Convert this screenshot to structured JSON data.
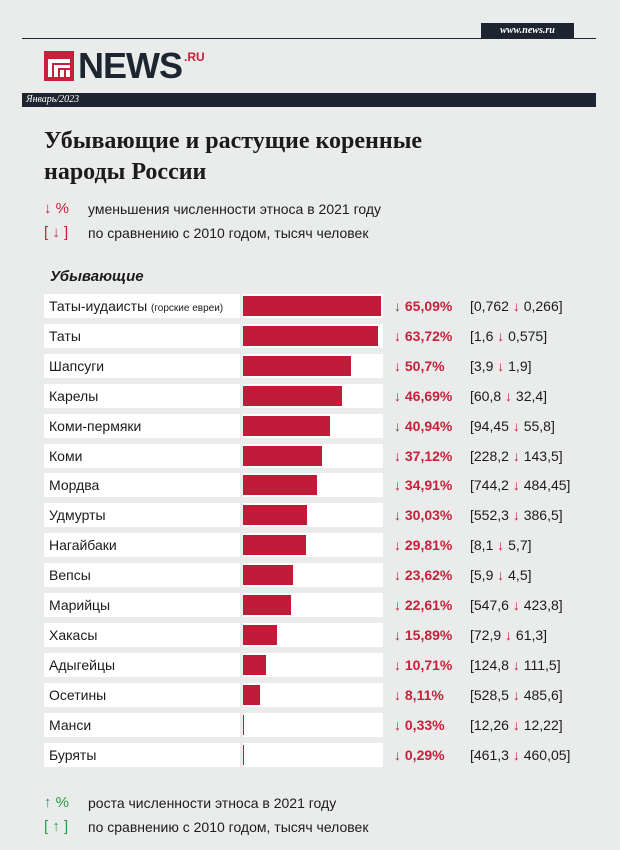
{
  "header": {
    "site_tag": "www.news.ru",
    "logo_word": "NEWS",
    "logo_suffix": ".RU",
    "date": "Январь/2023"
  },
  "title_line1": "Убывающие и растущие коренные",
  "title_line2": "народы России",
  "legend_decline": {
    "pct_symbol": "↓ %",
    "pct_text": "уменьшения численности этноса в 2021 году",
    "bracket_symbol": "[ ↓ ]",
    "bracket_text": "по сравнению с 2010 годом, тысяч человек"
  },
  "legend_growth": {
    "pct_symbol": "↑ %",
    "pct_text": "роста численности этноса в 2021 году",
    "bracket_symbol": "[ ↑ ]",
    "bracket_text": "по сравнению с 2010 годом, тысяч человек"
  },
  "section_title": "Убывающие",
  "colors": {
    "accent": "#c7203b",
    "bar": "#c01c3a",
    "growth": "#2f9a48",
    "dark": "#1d2530"
  },
  "chart_data": {
    "type": "bar",
    "orientation": "horizontal",
    "title": "Убывающие",
    "unit": "%",
    "xlim": [
      0,
      65.09
    ],
    "categories": [
      "Таты-иудаисты",
      "Таты",
      "Шапсуги",
      "Карелы",
      "Коми-пермяки",
      "Коми",
      "Мордва",
      "Удмурты",
      "Нагайбаки",
      "Вепсы",
      "Марийцы",
      "Хакасы",
      "Адыгейцы",
      "Осетины",
      "Манси",
      "Буряты"
    ],
    "rows": [
      {
        "name": "Таты-иудаисты",
        "note": "(горские евреи)",
        "value": 65.09,
        "pct_label": "↓ 65,09%",
        "from": "0,762",
        "to": "0,266"
      },
      {
        "name": "Таты",
        "note": "",
        "value": 63.72,
        "pct_label": "↓ 63,72%",
        "from": "1,6",
        "to": "0,575"
      },
      {
        "name": "Шапсуги",
        "note": "",
        "value": 50.7,
        "pct_label": "↓ 50,7%",
        "from": "3,9",
        "to": "1,9"
      },
      {
        "name": "Карелы",
        "note": "",
        "value": 46.69,
        "pct_label": "↓ 46,69%",
        "from": "60,8",
        "to": "32,4"
      },
      {
        "name": "Коми-пермяки",
        "note": "",
        "value": 40.94,
        "pct_label": "↓ 40,94%",
        "from": "94,45",
        "to": "55,8"
      },
      {
        "name": "Коми",
        "note": "",
        "value": 37.12,
        "pct_label": "↓ 37,12%",
        "from": "228,2",
        "to": "143,5"
      },
      {
        "name": "Мордва",
        "note": "",
        "value": 34.91,
        "pct_label": "↓ 34,91%",
        "from": "744,2",
        "to": "484,45"
      },
      {
        "name": "Удмурты",
        "note": "",
        "value": 30.03,
        "pct_label": "↓ 30,03%",
        "from": "552,3",
        "to": "386,5"
      },
      {
        "name": "Нагайбаки",
        "note": "",
        "value": 29.81,
        "pct_label": "↓ 29,81%",
        "from": "8,1",
        "to": "5,7"
      },
      {
        "name": "Вепсы",
        "note": "",
        "value": 23.62,
        "pct_label": "↓ 23,62%",
        "from": "5,9",
        "to": "4,5"
      },
      {
        "name": "Марийцы",
        "note": "",
        "value": 22.61,
        "pct_label": "↓ 22,61%",
        "from": "547,6",
        "to": "423,8"
      },
      {
        "name": "Хакасы",
        "note": "",
        "value": 15.89,
        "pct_label": "↓ 15,89%",
        "from": "72,9",
        "to": "61,3"
      },
      {
        "name": "Адыгейцы",
        "note": "",
        "value": 10.71,
        "pct_label": "↓ 10,71%",
        "from": "124,8",
        "to": "111,5"
      },
      {
        "name": "Осетины",
        "note": "",
        "value": 8.11,
        "pct_label": "↓ 8,11%",
        "from": "528,5",
        "to": "485,6"
      },
      {
        "name": "Манси",
        "note": "",
        "value": 0.33,
        "pct_label": "↓ 0,33%",
        "from": "12,26",
        "to": "12,22"
      },
      {
        "name": "Буряты",
        "note": "",
        "value": 0.29,
        "pct_label": "↓ 0,29%",
        "from": "461,3",
        "to": "460,05"
      }
    ]
  }
}
